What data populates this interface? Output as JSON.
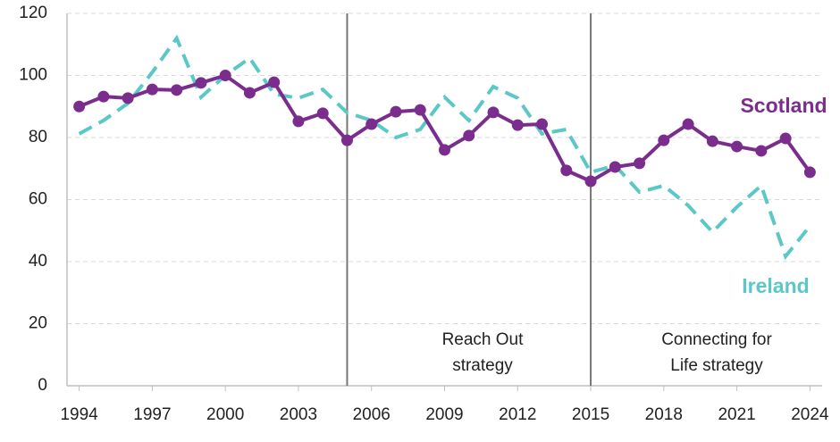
{
  "chart_data": {
    "type": "line",
    "x": [
      1994,
      1995,
      1996,
      1997,
      1998,
      1999,
      2000,
      2001,
      2002,
      2003,
      2004,
      2005,
      2006,
      2007,
      2008,
      2009,
      2010,
      2011,
      2012,
      2013,
      2014,
      2015,
      2016,
      2017,
      2018,
      2019,
      2020,
      2021,
      2022,
      2023,
      2024
    ],
    "series": [
      {
        "name": "Scotland",
        "color": "#7b2d8e",
        "style": "solid",
        "markers": true,
        "values": [
          90,
          93.2,
          92.7,
          95.5,
          95.3,
          97.6,
          100,
          94.4,
          97.8,
          85.2,
          87.8,
          79.1,
          84.3,
          88.3,
          88.9,
          76,
          80.6,
          88.1,
          84,
          84.3,
          69.4,
          65.9,
          70.5,
          71.7,
          79.1,
          84.3,
          78.8,
          77.1,
          75.7,
          79.7,
          68.8
        ]
      },
      {
        "name": "Ireland",
        "color": "#5bc8c8",
        "style": "dashed",
        "markers": false,
        "values": [
          81.2,
          85.5,
          91,
          101,
          112,
          93,
          100,
          105.6,
          94,
          92.7,
          95.5,
          88,
          85.5,
          80,
          82.6,
          93,
          85.5,
          96.4,
          92.7,
          81.2,
          82.6,
          68.8,
          71,
          62.4,
          64.5,
          58.1,
          49.5,
          57.6,
          64.5,
          41.7,
          51.5
        ]
      }
    ],
    "xlim": [
      1993.5,
      2024.5
    ],
    "xticks": [
      1994,
      1997,
      2000,
      2003,
      2006,
      2009,
      2012,
      2015,
      2018,
      2021,
      2024
    ],
    "ylim": [
      0,
      120
    ],
    "yticks": [
      0,
      20,
      40,
      60,
      80,
      100,
      120
    ],
    "grid": true,
    "vlines": [
      2005,
      2015
    ],
    "annotations": [
      {
        "lines": [
          "Reach Out",
          "strategy"
        ]
      },
      {
        "lines": [
          "Connecting for",
          "Life strategy"
        ]
      }
    ]
  }
}
